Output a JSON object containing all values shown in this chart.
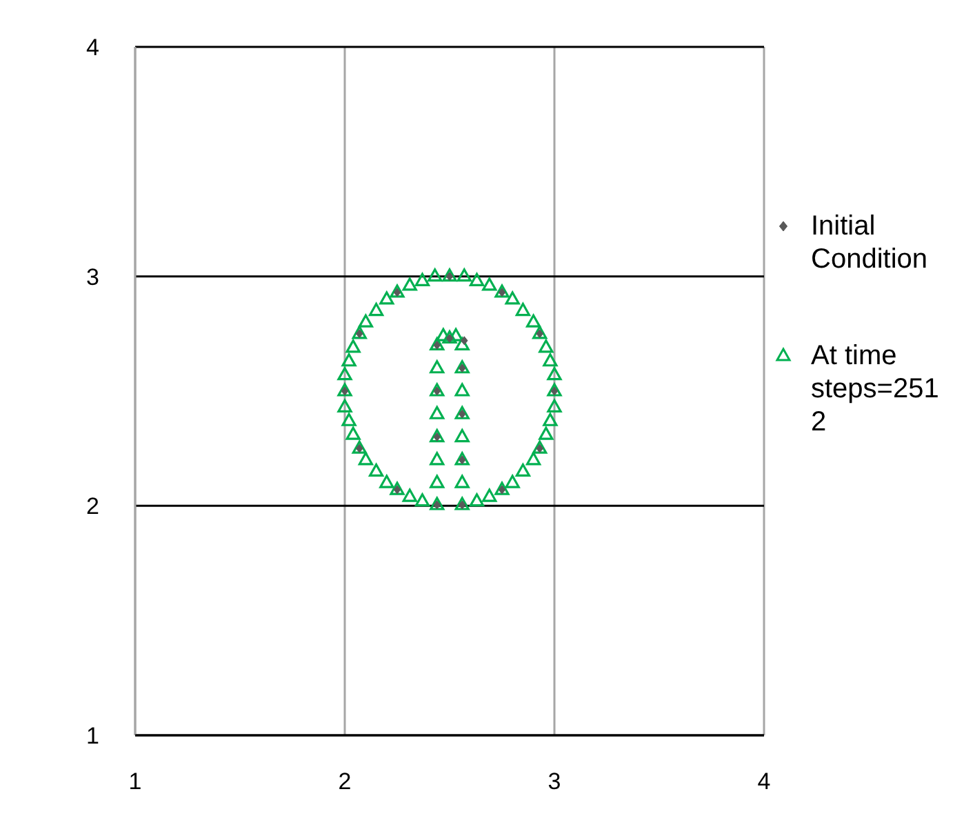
{
  "chart_data": {
    "type": "scatter",
    "xlim": [
      1,
      4
    ],
    "ylim": [
      1,
      4
    ],
    "xticks": [
      1,
      2,
      3,
      4
    ],
    "yticks": [
      1,
      2,
      3,
      4
    ],
    "grid": true,
    "legend": "right",
    "series": [
      {
        "name": "Initial Condition",
        "color": "#595959",
        "marker": "diamond",
        "x": [
          2.56,
          2.75,
          2.93,
          3.0,
          2.93,
          2.75,
          2.5,
          2.25,
          2.07,
          2.0,
          2.07,
          2.25,
          2.44,
          2.44,
          2.44,
          2.44,
          2.5,
          2.57,
          2.56,
          2.56,
          2.56
        ],
        "values": [
          2.004,
          2.07,
          2.25,
          2.5,
          2.75,
          2.93,
          3.0,
          2.93,
          2.75,
          2.5,
          2.25,
          2.07,
          2.004,
          2.3,
          2.5,
          2.7,
          2.73,
          2.72,
          2.6,
          2.4,
          2.2
        ]
      },
      {
        "name": "At time steps=2512",
        "color": "#00b050",
        "marker": "triangle",
        "x": [
          2.56,
          2.63,
          2.69,
          2.75,
          2.8,
          2.85,
          2.9,
          2.93,
          2.96,
          2.98,
          3.0,
          3.0,
          3.0,
          2.98,
          2.96,
          2.93,
          2.9,
          2.85,
          2.8,
          2.75,
          2.69,
          2.63,
          2.57,
          2.5,
          2.43,
          2.37,
          2.31,
          2.25,
          2.2,
          2.15,
          2.1,
          2.07,
          2.04,
          2.02,
          2.0,
          2.0,
          2.0,
          2.02,
          2.04,
          2.07,
          2.1,
          2.15,
          2.2,
          2.25,
          2.31,
          2.37,
          2.44,
          2.44,
          2.44,
          2.44,
          2.44,
          2.44,
          2.44,
          2.44,
          2.47,
          2.5,
          2.53,
          2.56,
          2.56,
          2.56,
          2.56,
          2.56,
          2.56,
          2.56
        ],
        "values": [
          2.004,
          2.02,
          2.04,
          2.07,
          2.1,
          2.15,
          2.2,
          2.25,
          2.31,
          2.37,
          2.43,
          2.5,
          2.57,
          2.63,
          2.69,
          2.75,
          2.8,
          2.85,
          2.9,
          2.93,
          2.96,
          2.98,
          3.0,
          3.0,
          3.0,
          2.98,
          2.96,
          2.93,
          2.9,
          2.85,
          2.8,
          2.75,
          2.69,
          2.63,
          2.57,
          2.5,
          2.43,
          2.37,
          2.31,
          2.25,
          2.2,
          2.15,
          2.1,
          2.07,
          2.04,
          2.02,
          2.004,
          2.1,
          2.2,
          2.3,
          2.4,
          2.5,
          2.6,
          2.7,
          2.74,
          2.73,
          2.74,
          2.7,
          2.6,
          2.5,
          2.4,
          2.3,
          2.2,
          2.1
        ]
      }
    ]
  }
}
